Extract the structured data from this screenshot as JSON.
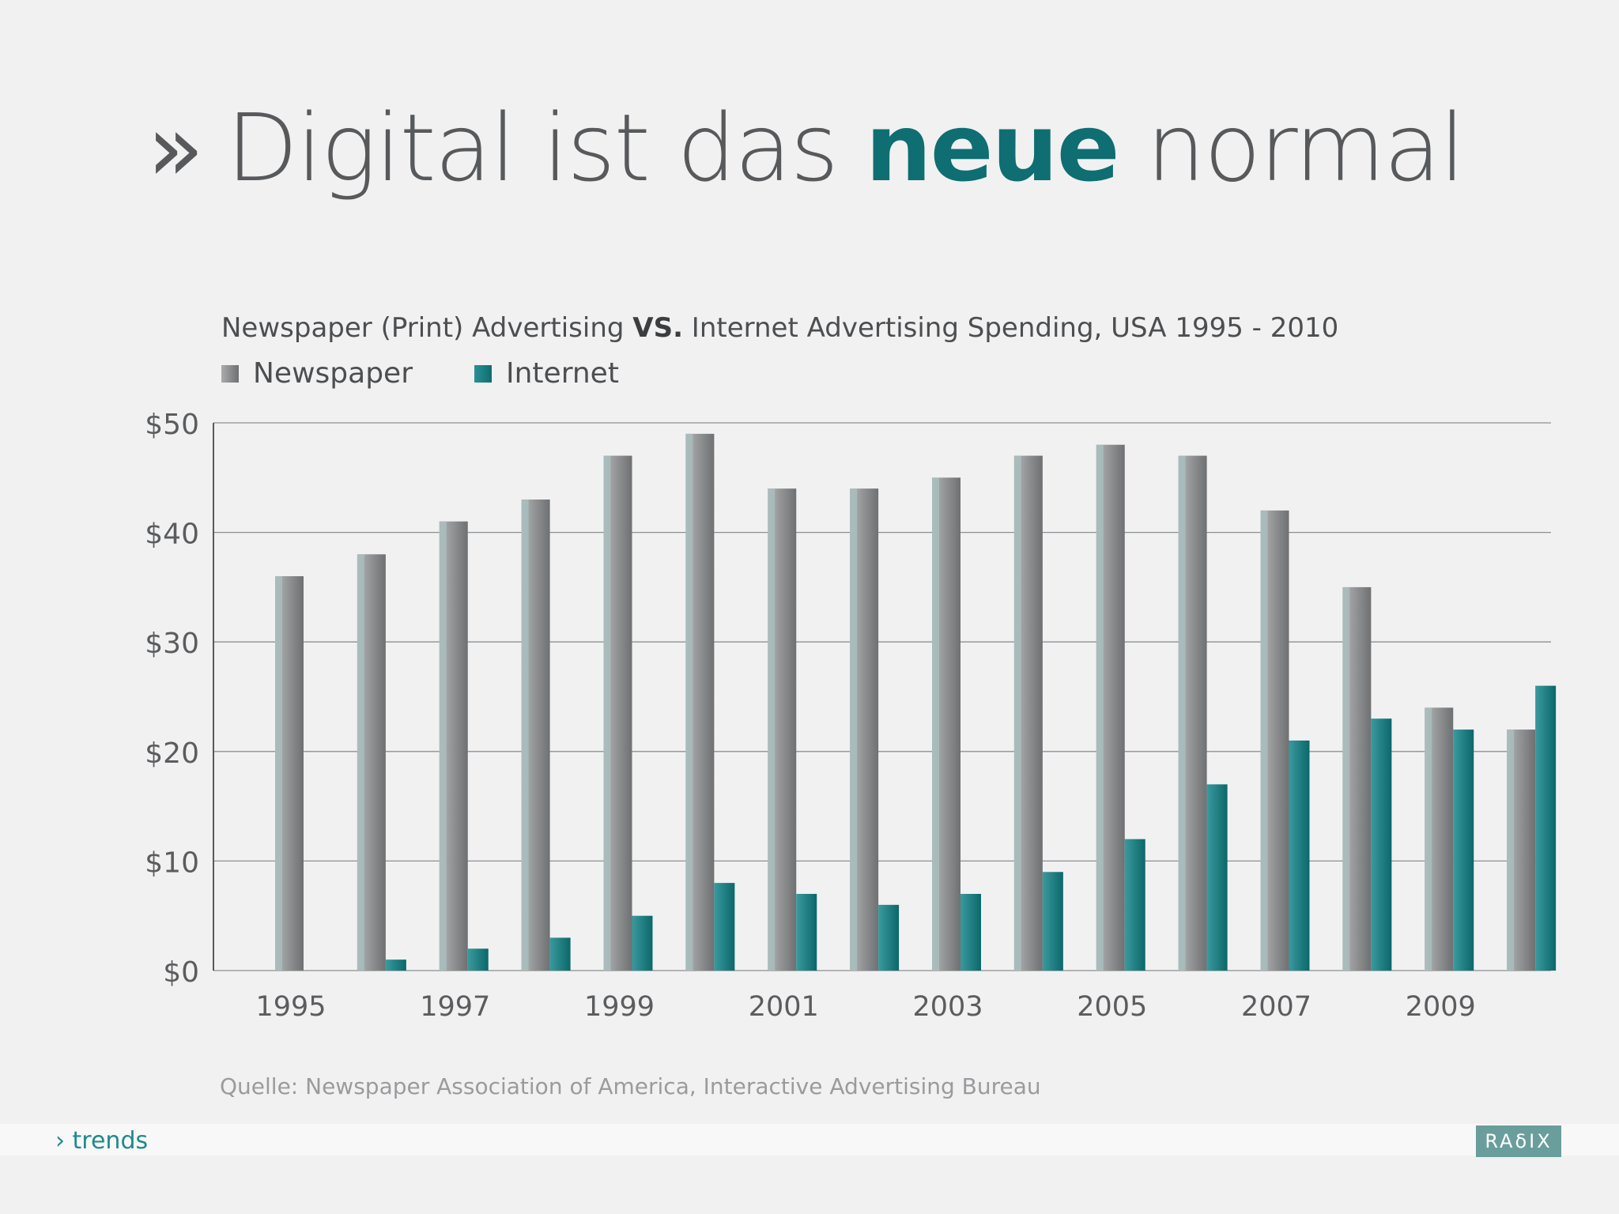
{
  "slide": {
    "chevron": "»",
    "title_pre": "Digital ist das",
    "title_highlight": "neue",
    "title_post": "normal",
    "footer_label": "› trends",
    "logo_text": "RAδIX"
  },
  "chart_data": {
    "type": "bar",
    "title_pre": "Newspaper (Print) Advertising",
    "title_vs": "VS.",
    "title_post": "Internet Advertising Spending, USA 1995 - 2010",
    "categories": [
      "1995",
      "1996",
      "1997",
      "1998",
      "1999",
      "2000",
      "2001",
      "2002",
      "2003",
      "2004",
      "2005",
      "2006",
      "2007",
      "2008",
      "2009",
      "2010"
    ],
    "x_tick_labels": [
      "1995",
      "1997",
      "1999",
      "2001",
      "2003",
      "2005",
      "2007",
      "2009"
    ],
    "series": [
      {
        "name": "Newspaper",
        "values": [
          36,
          38,
          41,
          43,
          47,
          49,
          44,
          44,
          45,
          47,
          48,
          47,
          42,
          35,
          24,
          22
        ],
        "color": "#8b8c8e"
      },
      {
        "name": "Internet",
        "values": [
          0,
          1,
          2,
          3,
          5,
          8,
          7,
          6,
          7,
          9,
          12,
          17,
          21,
          23,
          22,
          26
        ],
        "color": "#0f7074"
      }
    ],
    "y_ticks": [
      {
        "value": 0,
        "label": "$0"
      },
      {
        "value": 10,
        "label": "$10"
      },
      {
        "value": 20,
        "label": "$20"
      },
      {
        "value": 30,
        "label": "$30"
      },
      {
        "value": 40,
        "label": "$40"
      },
      {
        "value": 50,
        "label": "$50"
      }
    ],
    "ylim": [
      0,
      50
    ],
    "grid": true,
    "legend_position": "top-left",
    "source": "Quelle: Newspaper Association of America, Interactive Advertising Bureau"
  }
}
